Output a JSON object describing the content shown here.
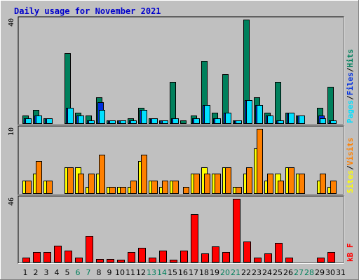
{
  "title": "Daily usage for November 2021",
  "colors": {
    "pages": "#00e0ff",
    "files": "#0030e0",
    "hits": "#00805c",
    "visits": "#ff8000",
    "sites": "#ffff00",
    "kbytes": "#ff0000",
    "weekend_label": "#00805c",
    "weekday_label": "#000000",
    "title": "#0000cc",
    "panel_bg": "#c0c0c0"
  },
  "chart_data": [
    {
      "type": "bar",
      "panel": "hits-files-pages",
      "ytick": "40",
      "ylim": [
        0,
        40
      ],
      "legend": [
        {
          "key": "pages",
          "label": "Pages"
        },
        {
          "key": "files",
          "label": "Files"
        },
        {
          "key": "hits",
          "label": "Hits"
        }
      ],
      "categories": [
        "1",
        "2",
        "3",
        "4",
        "5",
        "6",
        "7",
        "8",
        "9",
        "10",
        "11",
        "12",
        "13",
        "14",
        "15",
        "16",
        "17",
        "18",
        "19",
        "20",
        "21",
        "22",
        "23",
        "24",
        "25",
        "26",
        "27",
        "28",
        "29",
        "30",
        "31"
      ],
      "series": [
        {
          "name": "Hits",
          "key": "hits",
          "values": [
            3,
            5,
            2,
            0,
            27,
            4,
            3,
            10,
            1,
            1,
            2,
            6,
            2,
            1,
            16,
            1,
            3,
            24,
            4,
            19,
            1,
            40,
            10,
            4,
            16,
            4,
            3,
            0,
            6,
            14,
            0
          ]
        },
        {
          "name": "Files",
          "key": "files",
          "values": [
            2,
            3,
            2,
            0,
            6,
            3,
            1,
            8,
            1,
            1,
            1,
            5,
            2,
            1,
            2,
            0,
            2,
            7,
            2,
            4,
            1,
            9,
            7,
            3,
            1,
            4,
            3,
            0,
            3,
            1,
            0
          ]
        },
        {
          "name": "Pages",
          "key": "pages",
          "values": [
            2,
            3,
            2,
            0,
            6,
            3,
            1,
            5,
            1,
            1,
            1,
            5,
            2,
            1,
            2,
            0,
            2,
            7,
            2,
            4,
            1,
            9,
            7,
            3,
            1,
            4,
            3,
            0,
            2,
            1,
            0
          ]
        }
      ]
    },
    {
      "type": "bar",
      "panel": "visits-sites",
      "ytick": "10",
      "ylim": [
        0,
        10
      ],
      "legend": [
        {
          "key": "sites",
          "label": "Sites"
        },
        {
          "key": "visits",
          "label": "Visits"
        }
      ],
      "categories": [
        "1",
        "2",
        "3",
        "4",
        "5",
        "6",
        "7",
        "8",
        "9",
        "10",
        "11",
        "12",
        "13",
        "14",
        "15",
        "16",
        "17",
        "18",
        "19",
        "20",
        "21",
        "22",
        "23",
        "24",
        "25",
        "26",
        "27",
        "28",
        "29",
        "30",
        "31"
      ],
      "series": [
        {
          "name": "Sites",
          "key": "sites",
          "values": [
            2,
            3,
            2,
            0,
            4,
            4,
            1,
            3,
            1,
            1,
            1,
            5,
            2,
            1,
            2,
            0,
            3,
            4,
            3,
            4,
            1,
            3,
            7,
            2,
            3,
            4,
            3,
            0,
            2,
            1,
            0
          ]
        },
        {
          "name": "Visits",
          "key": "visits",
          "values": [
            2,
            5,
            2,
            0,
            4,
            3,
            3,
            6,
            1,
            1,
            2,
            6,
            2,
            2,
            2,
            1,
            3,
            3,
            3,
            4,
            1,
            4,
            10,
            3,
            2,
            4,
            3,
            0,
            3,
            2,
            0
          ]
        }
      ]
    },
    {
      "type": "bar",
      "panel": "kbytes",
      "ytick": "46",
      "ylim": [
        0,
        46
      ],
      "legend": [
        {
          "key": "kbytes",
          "label": "kB F"
        }
      ],
      "categories": [
        "1",
        "2",
        "3",
        "4",
        "5",
        "6",
        "7",
        "8",
        "9",
        "10",
        "11",
        "12",
        "13",
        "14",
        "15",
        "16",
        "17",
        "18",
        "19",
        "20",
        "21",
        "22",
        "23",
        "24",
        "25",
        "26",
        "27",
        "28",
        "29",
        "30",
        "31"
      ],
      "series": [
        {
          "name": "kB F",
          "key": "kbytes",
          "values": [
            3,
            7,
            7,
            12,
            8,
            3,
            19,
            2,
            2,
            1,
            7,
            10,
            3,
            8,
            1,
            8,
            35,
            6,
            11,
            7,
            46,
            15,
            3,
            6,
            14,
            3,
            0,
            0,
            3,
            7,
            0
          ]
        }
      ]
    }
  ],
  "x_labels": [
    {
      "text": "1",
      "weekend": false
    },
    {
      "text": "2",
      "weekend": false
    },
    {
      "text": "3",
      "weekend": false
    },
    {
      "text": "4",
      "weekend": false
    },
    {
      "text": "5",
      "weekend": false
    },
    {
      "text": "6",
      "weekend": true
    },
    {
      "text": "7",
      "weekend": true
    },
    {
      "text": "8",
      "weekend": false
    },
    {
      "text": "9",
      "weekend": false
    },
    {
      "text": "10",
      "weekend": false
    },
    {
      "text": "11",
      "weekend": false
    },
    {
      "text": "12",
      "weekend": false
    },
    {
      "text": "13",
      "weekend": true
    },
    {
      "text": "14",
      "weekend": true
    },
    {
      "text": "15",
      "weekend": false
    },
    {
      "text": "16",
      "weekend": false
    },
    {
      "text": "17",
      "weekend": false
    },
    {
      "text": "18",
      "weekend": false
    },
    {
      "text": "19",
      "weekend": false
    },
    {
      "text": "20",
      "weekend": true
    },
    {
      "text": "21",
      "weekend": true
    },
    {
      "text": "22",
      "weekend": false
    },
    {
      "text": "23",
      "weekend": false
    },
    {
      "text": "24",
      "weekend": false
    },
    {
      "text": "25",
      "weekend": false
    },
    {
      "text": "26",
      "weekend": false
    },
    {
      "text": "27",
      "weekend": true
    },
    {
      "text": "28",
      "weekend": true
    },
    {
      "text": "29",
      "weekend": false
    },
    {
      "text": "30",
      "weekend": false
    },
    {
      "text": "31",
      "weekend": false
    }
  ]
}
